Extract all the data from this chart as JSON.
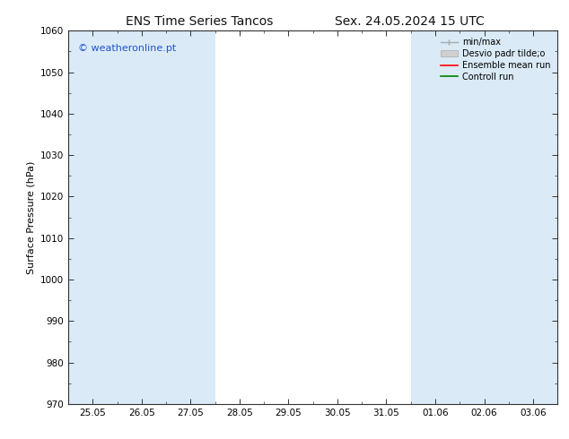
{
  "title_left": "ENS Time Series Tancos",
  "title_right": "Sex. 24.05.2024 15 UTC",
  "ylabel": "Surface Pressure (hPa)",
  "ylim": [
    970,
    1060
  ],
  "yticks": [
    970,
    980,
    990,
    1000,
    1010,
    1020,
    1030,
    1040,
    1050,
    1060
  ],
  "x_labels": [
    "25.05",
    "26.05",
    "27.05",
    "28.05",
    "29.05",
    "30.05",
    "31.05",
    "01.06",
    "02.06",
    "03.06"
  ],
  "shaded_bands_x": [
    0,
    1,
    2,
    7,
    8,
    9
  ],
  "shaded_color": "#daeaf7",
  "watermark": "© weatheronline.pt",
  "watermark_color": "#2255cc",
  "background_color": "#ffffff",
  "plot_bg_color": "#ffffff",
  "tick_color": "#333333",
  "spine_color": "#333333",
  "tick_fontsize": 7.5,
  "title_fontsize": 10,
  "ylabel_fontsize": 8
}
